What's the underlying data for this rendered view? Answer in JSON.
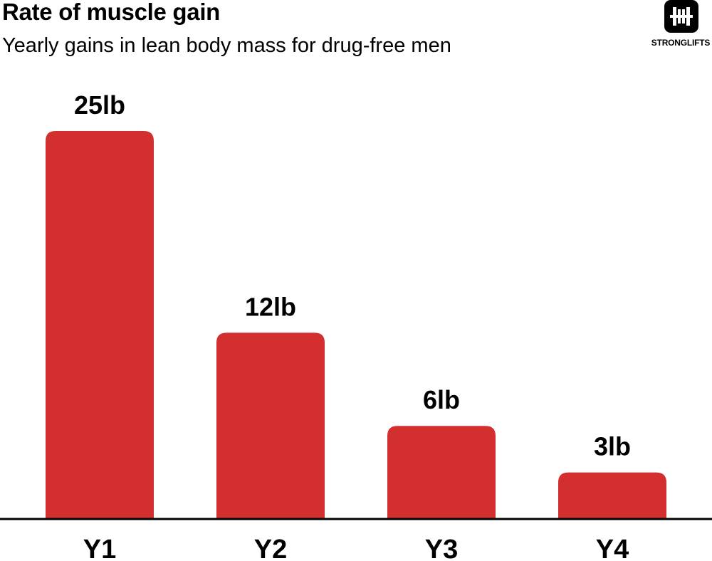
{
  "header": {
    "title": "Rate of muscle gain",
    "subtitle": "Yearly gains in lean body mass for drug-free men"
  },
  "logo": {
    "text": "STRONGLIFTS",
    "icon": "barbell-icon"
  },
  "colors": {
    "bar": "#d32f2f",
    "axis": "#000000",
    "text": "#000000",
    "background": "#ffffff"
  },
  "chart_data": {
    "type": "bar",
    "title": "Rate of muscle gain",
    "subtitle": "Yearly gains in lean body mass for drug-free men",
    "categories": [
      "Y1",
      "Y2",
      "Y3",
      "Y4"
    ],
    "values": [
      25,
      12,
      6,
      3
    ],
    "data_labels": [
      "25lb",
      "12lb",
      "6lb",
      "3lb"
    ],
    "unit": "lb",
    "xlabel": "",
    "ylabel": "",
    "ylim": [
      0,
      25
    ],
    "grid": false,
    "legend": "none"
  }
}
